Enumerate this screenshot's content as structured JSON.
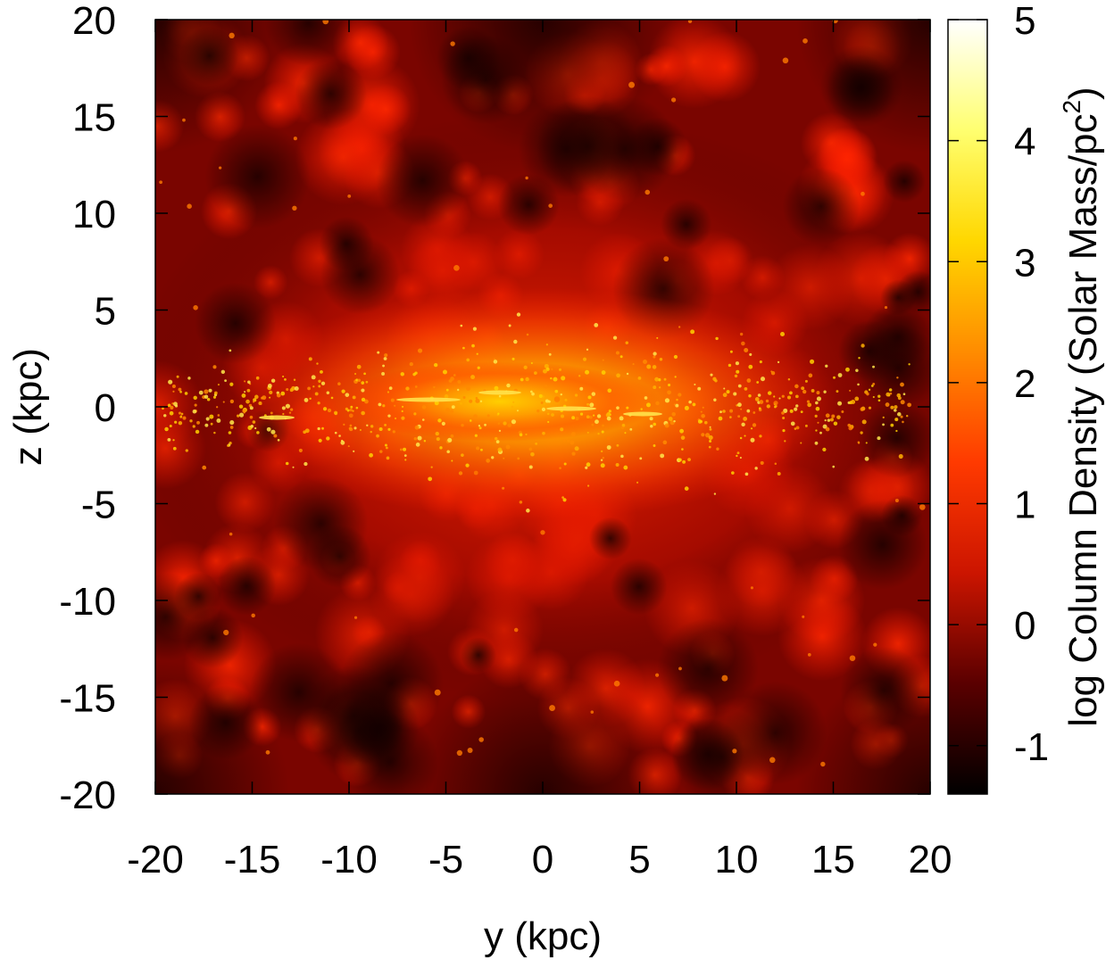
{
  "chart_data": {
    "type": "heatmap",
    "title": "",
    "xlabel": "y (kpc)",
    "ylabel": "z (kpc)",
    "colorbar_label": "log Column Density (Solar Mass/pc",
    "colorbar_label_superscript": "2",
    "colorbar_label_close": ")",
    "xlim": [
      -20,
      20
    ],
    "ylim": [
      -20,
      20
    ],
    "x_ticks": [
      -20,
      -15,
      -10,
      -5,
      0,
      5,
      10,
      15,
      20
    ],
    "y_ticks": [
      -20,
      -15,
      -10,
      -5,
      0,
      5,
      10,
      15,
      20
    ],
    "x_tick_labels": [
      "-20",
      "-15",
      "-10",
      "-5",
      "0",
      "5",
      "10",
      "15",
      "20"
    ],
    "y_tick_labels": [
      "-20",
      "-15",
      "-10",
      "-5",
      "0",
      "5",
      "10",
      "15",
      "20"
    ],
    "colorbar_range": [
      -1.4,
      5
    ],
    "colorbar_ticks": [
      -1,
      0,
      1,
      2,
      3,
      4,
      5
    ],
    "colorbar_tick_labels": [
      "-1",
      "0",
      "1",
      "2",
      "3",
      "4",
      "5"
    ],
    "colormap": [
      "#000000",
      "#5a0000",
      "#cc1500",
      "#ff3a00",
      "#ff8c00",
      "#ffd700",
      "#ffff70",
      "#ffffff"
    ],
    "description": "Edge-on column density map: dense yellow-orange disk near z=0 spanning about y=-10..10 kpc, clumpy red halo, dark low-density regions toward corners"
  }
}
